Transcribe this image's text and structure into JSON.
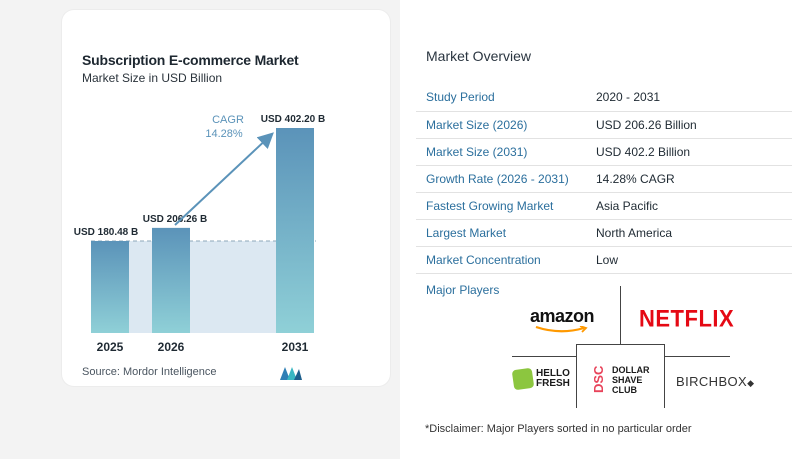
{
  "chart": {
    "title": "Subscription E-commerce Market",
    "subtitle": "Market Size in USD Billion",
    "source": "Source:  Mordor Intelligence",
    "cagr_label": "CAGR",
    "cagr_value": "14.28%"
  },
  "chart_data": {
    "type": "bar",
    "title": "Subscription E-commerce Market",
    "subtitle": "Market Size in USD Billion",
    "categories": [
      "2025",
      "2026",
      "2031"
    ],
    "values": [
      180.48,
      206.26,
      402.2
    ],
    "data_labels": [
      "USD 180.48 B",
      "USD 206.26 B",
      "USD 402.20 B"
    ],
    "annotation": "CAGR 14.28%",
    "colors": {
      "bar_top": "#5b93b9",
      "bar_bottom": "#8fd0d7",
      "band": "#dce8f2",
      "arrow": "#5b93b9"
    }
  },
  "overview": {
    "title": "Market Overview",
    "rows": [
      {
        "key": "Study Period",
        "value": "2020 - 2031"
      },
      {
        "key": "Market Size (2026)",
        "value": "USD 206.26 Billion"
      },
      {
        "key": "Market Size (2031)",
        "value": "USD 402.2 Billion"
      },
      {
        "key": "Growth Rate (2026 - 2031)",
        "value": "14.28% CAGR"
      },
      {
        "key": "Fastest Growing Market",
        "value": "Asia Pacific"
      },
      {
        "key": "Largest Market",
        "value": "North America"
      },
      {
        "key": "Market Concentration",
        "value": "Low"
      }
    ],
    "players_title": "Major Players",
    "players": {
      "amazon": "amazon",
      "netflix": "NETFLIX",
      "hellofresh": "HELLO FRESH",
      "dsc_letters": "DSC",
      "dsc_text": "DOLLAR SHAVE CLUB",
      "birchbox": "BIRCHBOX"
    },
    "disclaimer": "*Disclaimer: Major Players sorted in no particular order"
  }
}
